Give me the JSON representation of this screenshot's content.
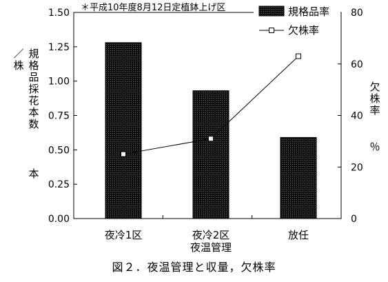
{
  "chart_data": {
    "type": "bar",
    "title": "",
    "annotation": "＊平成10年度8月12日定植鉢上げ区",
    "categories": [
      {
        "label": "夜冷1区",
        "sublabel": ""
      },
      {
        "label": "夜冷2区",
        "sublabel": "夜温管理"
      },
      {
        "label": "放任",
        "sublabel": ""
      }
    ],
    "series": [
      {
        "name": "規格品率",
        "type": "bar",
        "axis": "left",
        "values": [
          1.28,
          0.93,
          0.59
        ]
      },
      {
        "name": "欠株率",
        "type": "line",
        "axis": "right",
        "values": [
          25,
          31,
          63
        ]
      }
    ],
    "ylabel_left": "／株規格品採花本数　本",
    "ylabel_left_parts": [
      "／株",
      "規格品採花本数",
      "本"
    ],
    "ylabel_right": "欠株率　％",
    "ylabel_right_parts": [
      "欠株率",
      "％"
    ],
    "ylim_left": [
      0,
      1.5
    ],
    "ylim_right": [
      0,
      80
    ],
    "yticks_left": [
      "0.00",
      "0.25",
      "0.50",
      "0.75",
      "1.00",
      "1.25",
      "1.50"
    ],
    "yticks_right": [
      "0",
      "20",
      "40",
      "60",
      "80"
    ],
    "grid": false,
    "legend_position": "top-right",
    "colors": {
      "bar_fill": "#1a1a1a",
      "bar_pattern": "#555555",
      "line": "#000000",
      "marker_fill": "#ffffff"
    }
  },
  "caption": "図２．夜温管理と収量，欠株率"
}
